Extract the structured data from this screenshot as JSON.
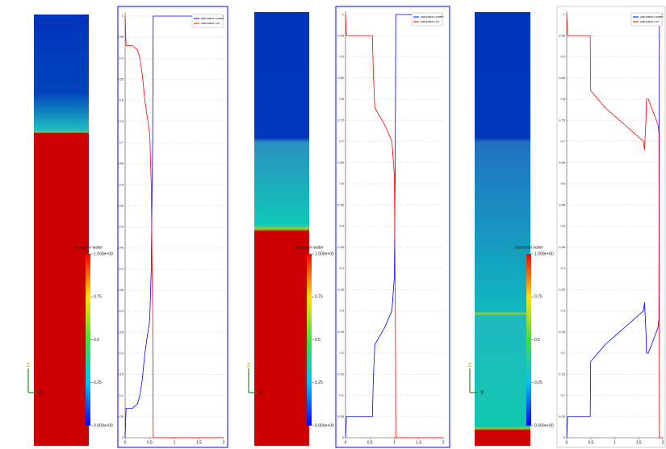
{
  "chart_data": [
    {
      "type": "line",
      "x": [
        0,
        0.02,
        0.05,
        0.1,
        0.15,
        0.2,
        0.25,
        0.3,
        0.35,
        0.4,
        0.45,
        0.5,
        0.53,
        0.55,
        0.56,
        0.57,
        1,
        1.5,
        2
      ],
      "series": [
        {
          "name": "saturation water",
          "color": "#0000ff",
          "values": [
            0,
            0.07,
            0.07,
            0.07,
            0.07,
            0.075,
            0.08,
            0.1,
            0.14,
            0.2,
            0.24,
            0.28,
            0.4,
            0.62,
            0.7,
            1,
            1,
            1,
            1
          ]
        },
        {
          "name": "saturation oil",
          "color": "#ff0000",
          "values": [
            1,
            0.93,
            0.93,
            0.93,
            0.93,
            0.925,
            0.92,
            0.9,
            0.86,
            0.8,
            0.76,
            0.72,
            0.6,
            0.38,
            0.3,
            0,
            0,
            0,
            0
          ]
        }
      ],
      "xlim": [
        0,
        2
      ],
      "xticks": [
        0,
        0.5,
        1,
        1.5,
        2
      ],
      "ylim": [
        0,
        1
      ],
      "yticks": [
        0,
        0.05,
        0.1,
        0.15,
        0.2,
        0.25,
        0.3,
        0.35,
        0.4,
        0.45,
        0.5,
        0.55,
        0.6,
        0.65,
        0.7,
        0.75,
        0.8,
        0.85,
        0.9,
        0.95,
        1
      ],
      "grid": true,
      "legend": "top-right"
    },
    {
      "type": "line",
      "x": [
        0,
        0.02,
        0.3,
        0.55,
        0.57,
        0.6,
        0.8,
        0.95,
        1.0,
        1.02,
        1.03,
        1.5,
        2
      ],
      "series": [
        {
          "name": "saturation water",
          "color": "#0000ff",
          "values": [
            0,
            0.05,
            0.05,
            0.05,
            0.14,
            0.22,
            0.26,
            0.3,
            0.38,
            0.7,
            1,
            1,
            1
          ]
        },
        {
          "name": "saturation oil",
          "color": "#ff0000",
          "values": [
            1,
            0.95,
            0.95,
            0.95,
            0.86,
            0.78,
            0.74,
            0.7,
            0.62,
            0.3,
            0,
            0,
            0
          ]
        }
      ],
      "xlim": [
        0,
        2
      ],
      "xticks": [
        0,
        0.5,
        1,
        1.5,
        2
      ],
      "ylim": [
        0,
        1
      ],
      "yticks": [
        0,
        0.05,
        0.1,
        0.15,
        0.2,
        0.25,
        0.3,
        0.35,
        0.4,
        0.45,
        0.5,
        0.55,
        0.6,
        0.65,
        0.7,
        0.75,
        0.8,
        0.85,
        0.9,
        0.95,
        1
      ],
      "grid": true,
      "legend": "top-right"
    },
    {
      "type": "line",
      "x": [
        0,
        0.02,
        0.3,
        0.49,
        0.5,
        0.8,
        1.2,
        1.6,
        1.62,
        1.65,
        1.66,
        1.7,
        1.9,
        1.92,
        1.93,
        2
      ],
      "series": [
        {
          "name": "saturation water",
          "color": "#0000ff",
          "values": [
            0,
            0.05,
            0.05,
            0.05,
            0.18,
            0.22,
            0.26,
            0.3,
            0.32,
            0.25,
            0.2,
            0.2,
            0.26,
            0.28,
            1,
            1
          ]
        },
        {
          "name": "saturation oil",
          "color": "#ff0000",
          "values": [
            1,
            0.95,
            0.95,
            0.95,
            0.82,
            0.78,
            0.74,
            0.7,
            0.68,
            0.75,
            0.8,
            0.8,
            0.74,
            0.72,
            0,
            0
          ]
        }
      ],
      "xlim": [
        0,
        2
      ],
      "xticks": [
        0,
        0.5,
        1,
        1.5,
        2
      ],
      "ylim": [
        0,
        1
      ],
      "yticks": [
        0,
        0.05,
        0.1,
        0.15,
        0.2,
        0.25,
        0.3,
        0.35,
        0.4,
        0.45,
        0.5,
        0.55,
        0.6,
        0.65,
        0.7,
        0.75,
        0.8,
        0.85,
        0.9,
        0.95,
        1
      ],
      "grid": true,
      "legend": "top-right"
    }
  ],
  "colorbar": {
    "title": "saturation water",
    "ticks": [
      {
        "value": 1,
        "label": "1.000e+00"
      },
      0.75,
      0.5,
      0.25,
      {
        "value": 0,
        "label": "0.000e+00"
      }
    ]
  },
  "glyph_labels": [
    "Z",
    "X"
  ]
}
